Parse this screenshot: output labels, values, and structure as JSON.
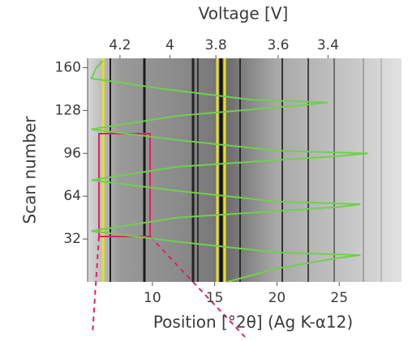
{
  "chart_data": {
    "type": "line",
    "x2_label": "Voltage [V]",
    "x_label": "Position [°2θ] (Ag K-α12)",
    "y_label": "Scan number",
    "xlim": [
      4.8,
      30
    ],
    "xticks": [
      10,
      15,
      20,
      25
    ],
    "ylim": [
      0,
      167
    ],
    "yticks": [
      32,
      64,
      96,
      128,
      160
    ],
    "x2ticks": [
      4.2,
      4,
      3.8,
      3.6,
      3.4
    ],
    "x2tick_positions": [
      7.4,
      11.4,
      15.1,
      20.1,
      24.1
    ],
    "color": "#6fd04c",
    "x": [
      16,
      20,
      25,
      26.7,
      20,
      12,
      5.1,
      12,
      25,
      26.7,
      20,
      12,
      5.1,
      12,
      25,
      27.3,
      20,
      12,
      5.1,
      12,
      22,
      24.1,
      18,
      11,
      5.1,
      5.5,
      6
    ],
    "values": [
      0,
      10,
      18,
      20,
      22,
      30,
      38,
      48,
      56,
      58,
      60,
      68,
      76,
      86,
      94,
      96,
      98,
      106,
      114,
      124,
      132,
      134,
      136,
      144,
      152,
      160,
      165
    ]
  }
}
